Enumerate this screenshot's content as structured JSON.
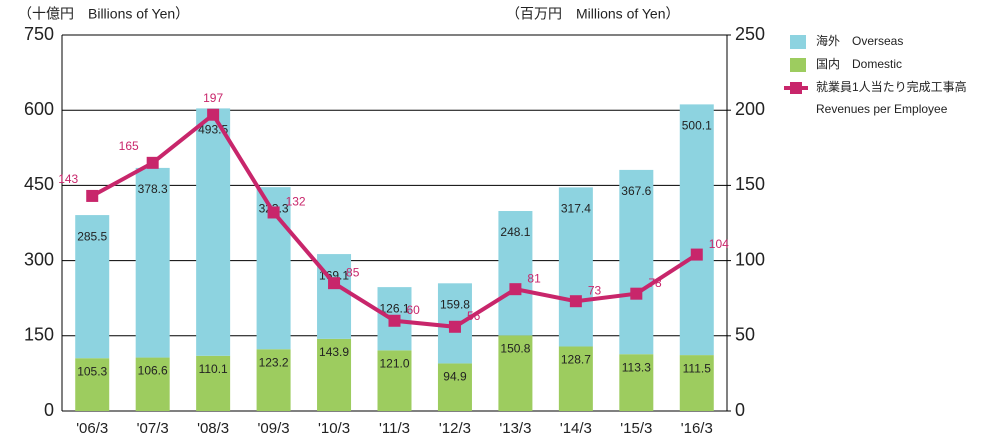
{
  "chart_data": {
    "type": "bar-line",
    "ylabel": "（十億円　Billions of Yen）",
    "y2label": "（百万円　Millions of Yen）",
    "categories": [
      "'06/3",
      "'07/3",
      "'08/3",
      "'09/3",
      "'10/3",
      "'11/3",
      "'12/3",
      "'13/3",
      "'14/3",
      "'15/3",
      "'16/3"
    ],
    "series": [
      {
        "name": "国内　Domestic",
        "color": "#9dcc5f",
        "stacked": true,
        "values": [
          105.3,
          106.6,
          110.1,
          123.2,
          143.9,
          121.0,
          94.9,
          150.8,
          128.7,
          113.3,
          111.5
        ],
        "value_labels": [
          "105.3",
          "106.6",
          "110.1",
          "123.2",
          "143.9",
          "121.0",
          "94.9",
          "150.8",
          "128.7",
          "113.3",
          "111.5"
        ]
      },
      {
        "name": "海外　Overseas",
        "color": "#8dd3e0",
        "stacked": true,
        "values": [
          285.5,
          378.3,
          493.5,
          323.3,
          169.1,
          126.1,
          159.8,
          248.1,
          317.4,
          367.6,
          500.1
        ]
      },
      {
        "name": "就業員1人当たり完成工事高",
        "subname": "Revenues per Employee",
        "color": "#c8266b",
        "axis": "y2",
        "kind": "line",
        "values": [
          143,
          165,
          197,
          132,
          85,
          60,
          56,
          81,
          73,
          78,
          104
        ]
      }
    ],
    "ylim": [
      0,
      750
    ],
    "yticks": [
      0,
      150,
      300,
      450,
      600,
      750
    ],
    "y2lim": [
      0,
      250
    ],
    "y2ticks": [
      0,
      50,
      100,
      150,
      200,
      250
    ],
    "grid": true
  }
}
